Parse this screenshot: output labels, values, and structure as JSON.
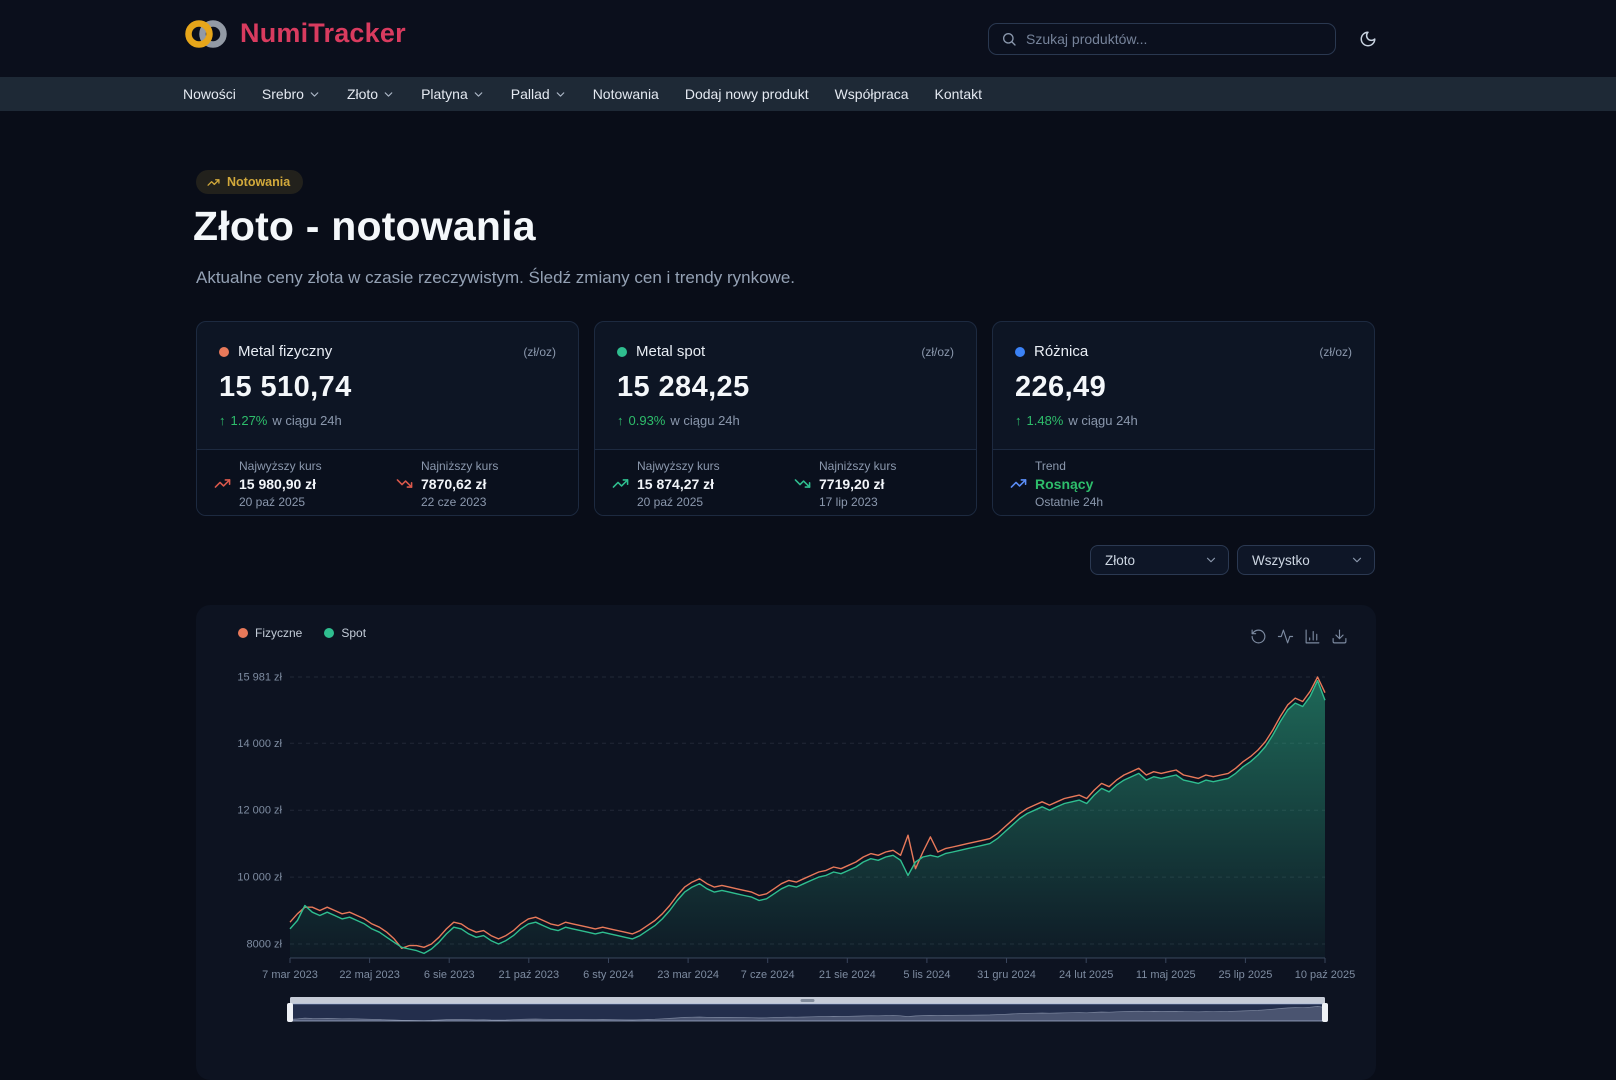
{
  "header": {
    "brand": "NumiTracker",
    "search_placeholder": "Szukaj produktów..."
  },
  "nav": {
    "items": [
      {
        "label": "Nowości",
        "dropdown": false
      },
      {
        "label": "Srebro",
        "dropdown": true
      },
      {
        "label": "Złoto",
        "dropdown": true
      },
      {
        "label": "Platyna",
        "dropdown": true
      },
      {
        "label": "Pallad",
        "dropdown": true
      },
      {
        "label": "Notowania",
        "dropdown": false
      },
      {
        "label": "Dodaj nowy produkt",
        "dropdown": false
      },
      {
        "label": "Współpraca",
        "dropdown": false
      },
      {
        "label": "Kontakt",
        "dropdown": false
      }
    ]
  },
  "hero": {
    "badge": "Notowania",
    "title": "Złoto - notowania",
    "subtitle": "Aktualne ceny złota w czasie rzeczywistym. Śledź zmiany cen i trendy rynkowe."
  },
  "cards": [
    {
      "name": "Metal fizyczny",
      "dot_color": "#e8795a",
      "unit": "(zł/oz)",
      "value": "15 510,74",
      "change_pct": "1.27%",
      "change_suffix": "w ciągu 24h",
      "stats": [
        {
          "label": "Najwyższy kurs",
          "value": "15 980,90 zł",
          "date": "20 paź 2025",
          "direction": "up",
          "icon_color": "#d9584b"
        },
        {
          "label": "Najniższy kurs",
          "value": "7870,62 zł",
          "date": "22 cze 2023",
          "direction": "down",
          "icon_color": "#d9584b"
        }
      ]
    },
    {
      "name": "Metal spot",
      "dot_color": "#2fbe8f",
      "unit": "(zł/oz)",
      "value": "15 284,25",
      "change_pct": "0.93%",
      "change_suffix": "w ciągu 24h",
      "stats": [
        {
          "label": "Najwyższy kurs",
          "value": "15 874,27 zł",
          "date": "20 paź 2025",
          "direction": "up",
          "icon_color": "#2fbe8f"
        },
        {
          "label": "Najniższy kurs",
          "value": "7719,20 zł",
          "date": "17 lip 2023",
          "direction": "down",
          "icon_color": "#2fbe8f"
        }
      ]
    },
    {
      "name": "Różnica",
      "dot_color": "#3b82f6",
      "unit": "(zł/oz)",
      "value": "226,49",
      "change_pct": "1.48%",
      "change_suffix": "w ciągu 24h",
      "stats": [
        {
          "label": "Trend",
          "value": "Rosnący",
          "date": "Ostatnie 24h",
          "direction": "up",
          "icon_color": "#5b8df6",
          "value_color": "#2ebd6b"
        }
      ]
    }
  ],
  "filters": {
    "metal": "Złoto",
    "range": "Wszystko"
  },
  "chart": {
    "legend": [
      {
        "label": "Fizyczne",
        "color": "#e8795a"
      },
      {
        "label": "Spot",
        "color": "#2fbe8f"
      }
    ],
    "toolbar": [
      "refresh",
      "line-chart",
      "bar-chart",
      "download"
    ]
  },
  "chart_data": {
    "type": "line",
    "title": "Złoto - notowania",
    "xlabel": "",
    "ylabel": "",
    "ylim": [
      7580,
      15981
    ],
    "grid": true,
    "legend_position": "top-left",
    "y_tick_values": [
      8000,
      10000,
      12000,
      14000,
      15981
    ],
    "y_tick_labels": [
      "8000 zł",
      "10 000 zł",
      "12 000 zł",
      "14 000 zł",
      "15 981 zł"
    ],
    "x_tick_labels": [
      "7 mar 2023",
      "22 maj 2023",
      "6 sie 2023",
      "21 paź 2023",
      "6 sty 2024",
      "23 mar 2024",
      "7 cze 2024",
      "21 sie 2024",
      "5 lis 2024",
      "31 gru 2024",
      "24 lut 2025",
      "11 maj 2025",
      "25 lip 2025",
      "10 paź 2025"
    ],
    "series": [
      {
        "name": "Fizyczne",
        "color": "#e8795a",
        "area": false,
        "values": [
          8650,
          8900,
          9100,
          9100,
          9000,
          9100,
          9000,
          8900,
          8950,
          8850,
          8750,
          8600,
          8500,
          8350,
          8150,
          7871,
          7950,
          7950,
          7900,
          8000,
          8200,
          8450,
          8650,
          8600,
          8450,
          8350,
          8400,
          8250,
          8150,
          8250,
          8400,
          8600,
          8750,
          8800,
          8700,
          8600,
          8550,
          8650,
          8600,
          8550,
          8500,
          8450,
          8500,
          8450,
          8400,
          8350,
          8300,
          8400,
          8550,
          8700,
          8900,
          9150,
          9450,
          9700,
          9850,
          9950,
          9800,
          9700,
          9750,
          9700,
          9650,
          9600,
          9550,
          9450,
          9500,
          9650,
          9800,
          9900,
          9850,
          9950,
          10050,
          10150,
          10200,
          10300,
          10250,
          10350,
          10450,
          10600,
          10700,
          10650,
          10750,
          10800,
          10650,
          11250,
          10250,
          10750,
          11200,
          10750,
          10850,
          10900,
          10950,
          11000,
          11050,
          11100,
          11150,
          11300,
          11500,
          11700,
          11900,
          12050,
          12150,
          12250,
          12150,
          12250,
          12350,
          12400,
          12450,
          12350,
          12600,
          12800,
          12700,
          12900,
          13050,
          13150,
          13250,
          13050,
          13150,
          13100,
          13150,
          13200,
          13050,
          13000,
          12950,
          13050,
          13000,
          13050,
          13100,
          13250,
          13450,
          13600,
          13800,
          14050,
          14400,
          14800,
          15150,
          15350,
          15250,
          15550,
          15981,
          15511
        ]
      },
      {
        "name": "Spot",
        "color": "#2fbe8f",
        "area": true,
        "values": [
          8450,
          8700,
          9150,
          8950,
          8850,
          8950,
          8850,
          8750,
          8800,
          8700,
          8600,
          8450,
          8350,
          8200,
          8050,
          7900,
          7850,
          7800,
          7719,
          7850,
          8050,
          8300,
          8500,
          8450,
          8300,
          8200,
          8250,
          8100,
          8000,
          8100,
          8250,
          8450,
          8600,
          8650,
          8550,
          8450,
          8400,
          8500,
          8450,
          8400,
          8350,
          8300,
          8350,
          8300,
          8250,
          8200,
          8150,
          8250,
          8400,
          8550,
          8750,
          9000,
          9300,
          9550,
          9700,
          9800,
          9650,
          9550,
          9600,
          9550,
          9500,
          9450,
          9400,
          9300,
          9350,
          9500,
          9650,
          9750,
          9700,
          9800,
          9900,
          10000,
          10050,
          10150,
          10100,
          10200,
          10300,
          10450,
          10550,
          10500,
          10600,
          10650,
          10500,
          10050,
          10450,
          10600,
          10650,
          10600,
          10700,
          10750,
          10800,
          10850,
          10900,
          10950,
          11000,
          11150,
          11350,
          11550,
          11750,
          11900,
          12000,
          12100,
          12000,
          12100,
          12200,
          12250,
          12300,
          12200,
          12450,
          12650,
          12550,
          12750,
          12900,
          13000,
          13100,
          12900,
          13000,
          12950,
          13000,
          13050,
          12900,
          12850,
          12800,
          12900,
          12850,
          12900,
          12950,
          13100,
          13300,
          13450,
          13650,
          13900,
          14250,
          14650,
          15000,
          15200,
          15100,
          15400,
          15874,
          15284
        ]
      }
    ]
  }
}
